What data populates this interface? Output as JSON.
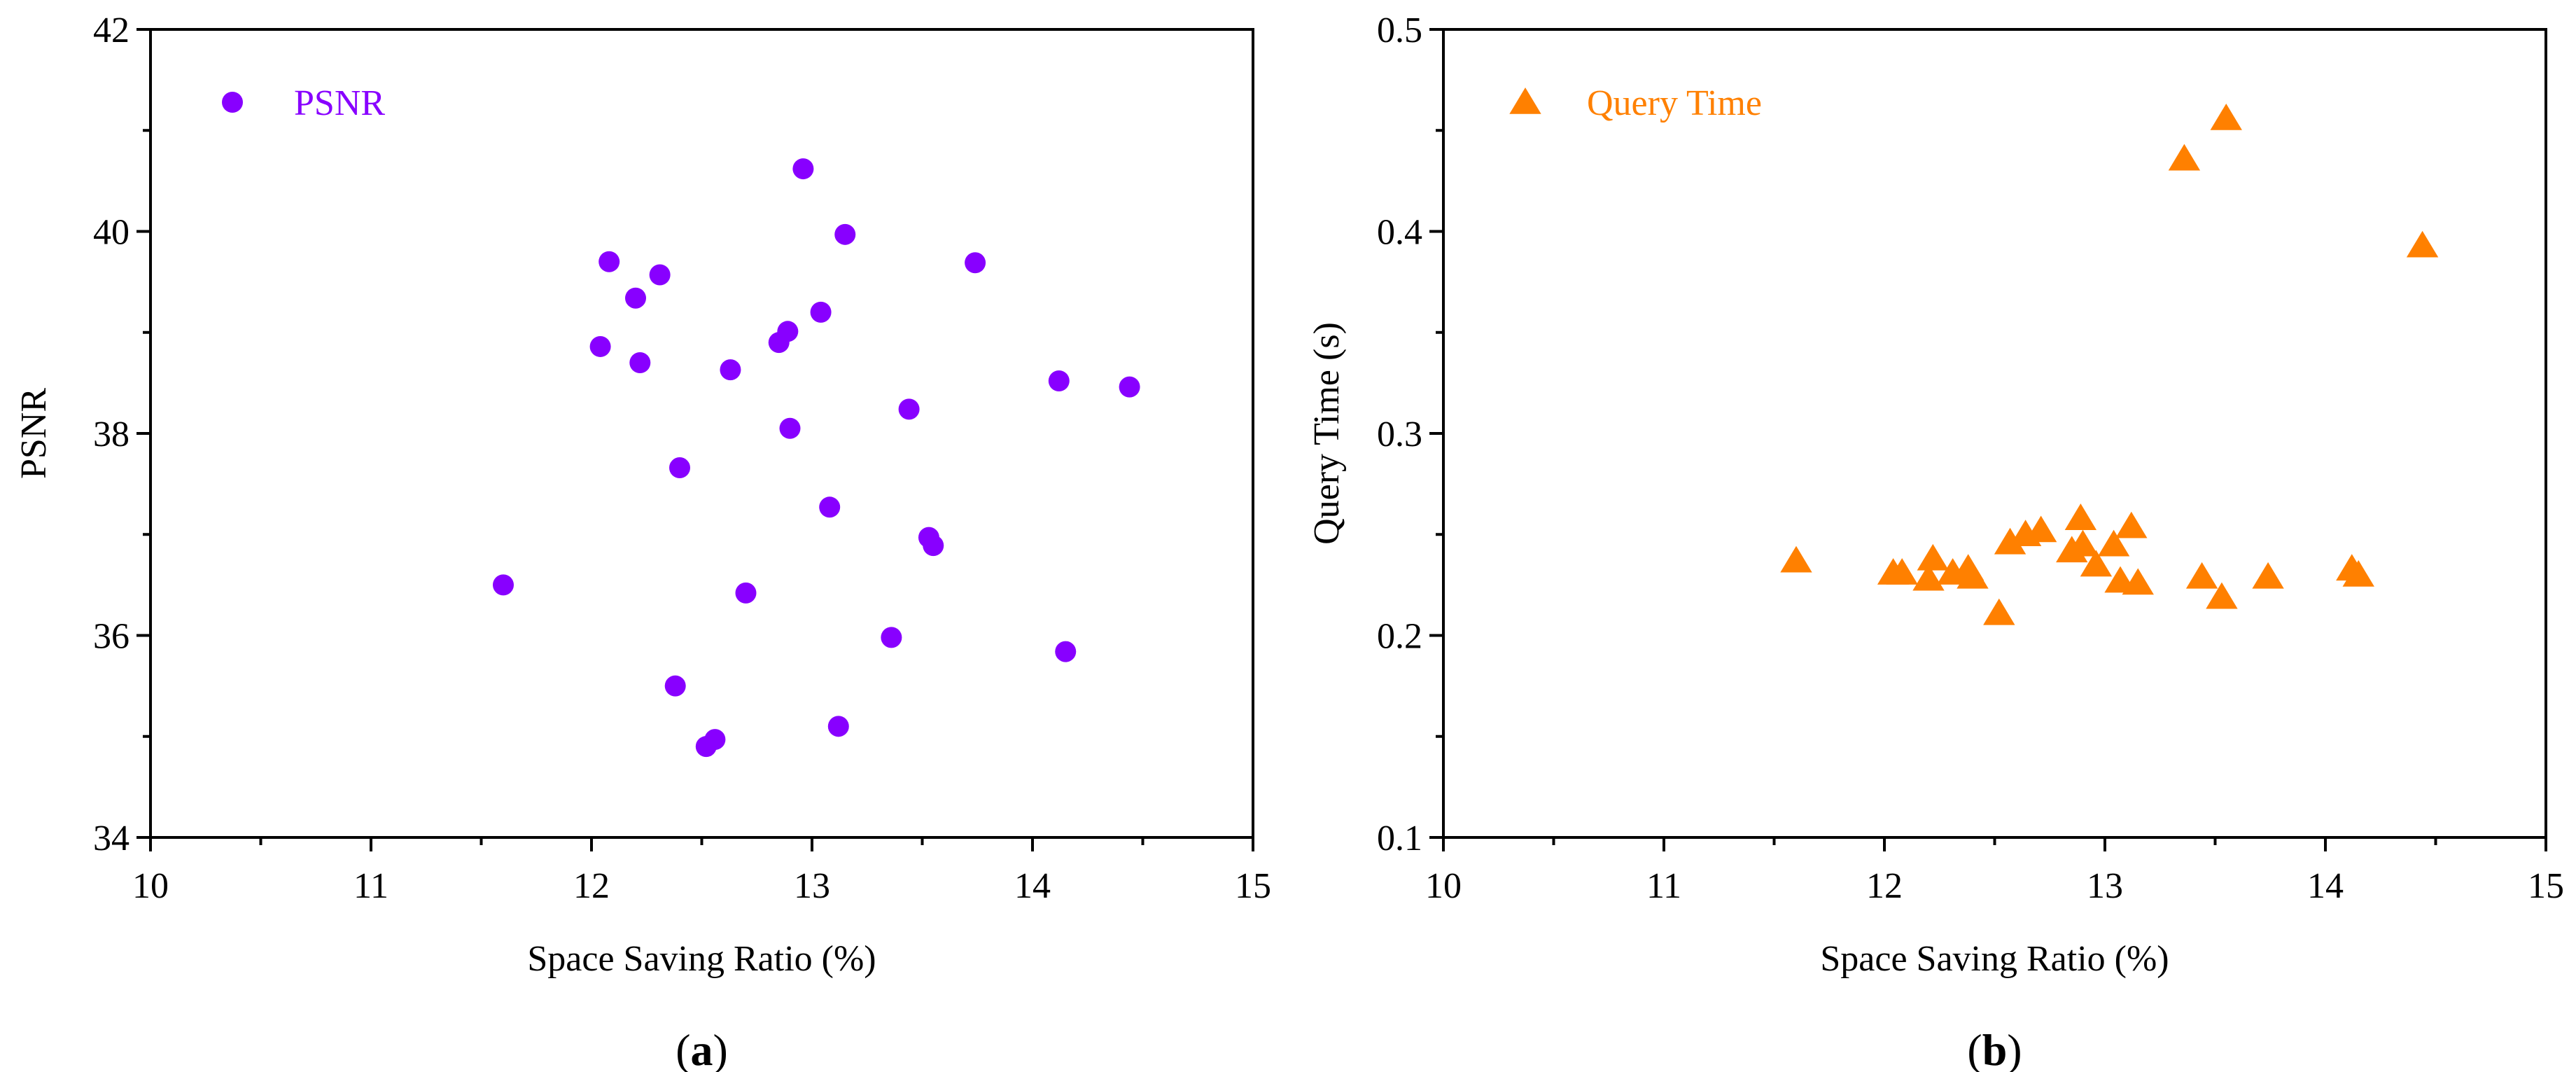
{
  "colors": {
    "psnr": "#8800ff",
    "query_time": "#ff8000",
    "axis": "#000000"
  },
  "chart_data": [
    {
      "type": "scatter",
      "panel_label": "(a)",
      "xlabel": "Space Saving Ratio (%)",
      "ylabel": "PSNR",
      "xlim": [
        10,
        15
      ],
      "ylim": [
        34,
        42
      ],
      "xticks": [
        10,
        11,
        12,
        13,
        14,
        15
      ],
      "yticks": [
        34,
        36,
        38,
        40,
        42
      ],
      "grid": false,
      "legend_position": "top-left",
      "series": [
        {
          "name": "PSNR",
          "marker": "circle",
          "color": "#8800ff",
          "points": [
            [
              11.6,
              36.5
            ],
            [
              12.04,
              38.86
            ],
            [
              12.08,
              39.7
            ],
            [
              12.2,
              39.34
            ],
            [
              12.22,
              38.7
            ],
            [
              12.31,
              39.57
            ],
            [
              12.38,
              35.5
            ],
            [
              12.4,
              37.66
            ],
            [
              12.52,
              34.9
            ],
            [
              12.56,
              34.97
            ],
            [
              12.63,
              38.63
            ],
            [
              12.7,
              36.42
            ],
            [
              12.85,
              38.9
            ],
            [
              12.89,
              39.01
            ],
            [
              12.9,
              38.05
            ],
            [
              12.96,
              40.62
            ],
            [
              13.04,
              39.2
            ],
            [
              13.08,
              37.27
            ],
            [
              13.12,
              35.1
            ],
            [
              13.15,
              39.97
            ],
            [
              13.36,
              35.98
            ],
            [
              13.44,
              38.24
            ],
            [
              13.53,
              36.97
            ],
            [
              13.55,
              36.89
            ],
            [
              13.74,
              39.69
            ],
            [
              14.12,
              38.52
            ],
            [
              14.15,
              35.84
            ],
            [
              14.44,
              38.46
            ]
          ]
        }
      ]
    },
    {
      "type": "scatter",
      "panel_label": "(b)",
      "xlabel": "Space Saving Ratio (%)",
      "ylabel": "Query Time (s)",
      "xlim": [
        10,
        15
      ],
      "ylim": [
        0.1,
        0.5
      ],
      "xticks": [
        10,
        11,
        12,
        13,
        14,
        15
      ],
      "yticks": [
        0.1,
        0.2,
        0.3,
        0.4,
        0.5
      ],
      "grid": false,
      "legend_position": "top-left",
      "series": [
        {
          "name": "Query Time",
          "marker": "triangle",
          "color": "#ff8000",
          "points": [
            [
              11.6,
              0.237
            ],
            [
              12.04,
              0.231
            ],
            [
              12.08,
              0.231
            ],
            [
              12.2,
              0.228
            ],
            [
              12.22,
              0.238
            ],
            [
              12.31,
              0.231
            ],
            [
              12.38,
              0.233
            ],
            [
              12.4,
              0.229
            ],
            [
              12.52,
              0.211
            ],
            [
              12.57,
              0.246
            ],
            [
              12.64,
              0.25
            ],
            [
              12.71,
              0.252
            ],
            [
              12.85,
              0.242
            ],
            [
              12.89,
              0.258
            ],
            [
              12.9,
              0.245
            ],
            [
              12.96,
              0.235
            ],
            [
              13.04,
              0.245
            ],
            [
              13.07,
              0.227
            ],
            [
              13.12,
              0.254
            ],
            [
              13.15,
              0.226
            ],
            [
              13.36,
              0.436
            ],
            [
              13.44,
              0.229
            ],
            [
              13.53,
              0.219
            ],
            [
              13.55,
              0.456
            ],
            [
              13.74,
              0.229
            ],
            [
              14.12,
              0.233
            ],
            [
              14.15,
              0.23
            ],
            [
              14.44,
              0.393
            ]
          ]
        }
      ]
    }
  ]
}
